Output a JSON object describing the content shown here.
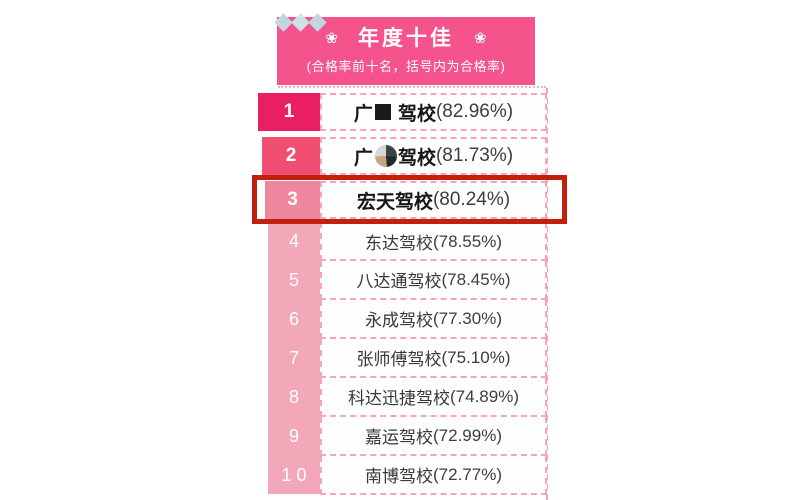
{
  "header": {
    "title": "年度十佳",
    "subtitle": "(合格率前十名，括号内为合格率)",
    "flower": "❀"
  },
  "rows": [
    {
      "rank": "1",
      "prefix": "广",
      "suffix": "驾校",
      "rate": "(82.96%)",
      "redaction": "black-square"
    },
    {
      "rank": "2",
      "prefix": "广",
      "suffix": "驾校",
      "rate": "(81.73%)",
      "redaction": "mosaic-circle"
    },
    {
      "rank": "3",
      "name": "宏天驾校",
      "rate": "(80.24%)",
      "highlighted": true
    },
    {
      "rank": "4",
      "name": "东达驾校",
      "rate": "(78.55%)"
    },
    {
      "rank": "5",
      "name": "八达通驾校",
      "rate": "(78.45%)"
    },
    {
      "rank": "6",
      "name": "永成驾校",
      "rate": "(77.30%)"
    },
    {
      "rank": "7",
      "name": "张师傅驾校",
      "rate": "(75.10%)"
    },
    {
      "rank": "8",
      "name": "科达迅捷驾校",
      "rate": "(74.89%)"
    },
    {
      "rank": "9",
      "name": "嘉运驾校",
      "rate": "(72.99%)"
    },
    {
      "rank": "1 0",
      "name": "南博驾校",
      "rate": "(72.77%)"
    }
  ],
  "colors": {
    "header_pink": "#F4538B",
    "rank1": "#E91E63",
    "rank2": "#F14E74",
    "rank3": "#EE879D",
    "rank_strip": "#F2A8B9",
    "dashed_border": "#F5A3C0",
    "highlight_border": "#C2200C",
    "diamond": "#C8DAE2"
  },
  "chart_data": {
    "type": "table",
    "title": "年度十佳",
    "subtitle": "(合格率前十名，括号内为合格率)",
    "columns": [
      "rank",
      "school",
      "pass_rate_percent"
    ],
    "rows": [
      [
        1,
        "广■驾校",
        82.96
      ],
      [
        2,
        "广■驾校",
        81.73
      ],
      [
        3,
        "宏天驾校",
        80.24
      ],
      [
        4,
        "东达驾校",
        78.55
      ],
      [
        5,
        "八达通驾校",
        78.45
      ],
      [
        6,
        "永成驾校",
        77.3
      ],
      [
        7,
        "张师傅驾校",
        75.1
      ],
      [
        8,
        "科达迅捷驾校",
        74.89
      ],
      [
        9,
        "嘉运驾校",
        72.99
      ],
      [
        10,
        "南博驾校",
        72.77
      ]
    ],
    "highlighted_rank": 3,
    "notes": "ranking list styled as pink infographic; rows 1-2 school names partially redacted"
  }
}
